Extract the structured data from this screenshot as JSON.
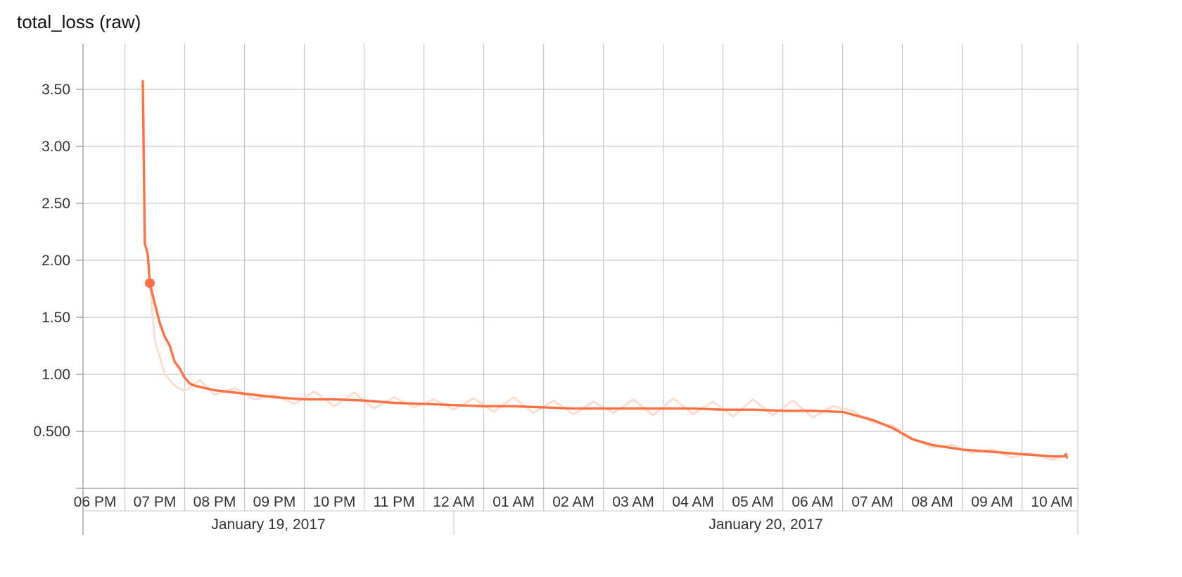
{
  "chart_data": {
    "type": "line",
    "title": "total_loss (raw)",
    "xlabel": "",
    "ylabel": "",
    "grid": true,
    "legend": "none",
    "x_axis": {
      "type": "time",
      "range": [
        "2017-01-19 17:48",
        "2017-01-20 10:26"
      ],
      "tick_labels": [
        "06 PM",
        "07 PM",
        "08 PM",
        "09 PM",
        "10 PM",
        "11 PM",
        "12 AM",
        "01 AM",
        "02 AM",
        "03 AM",
        "04 AM",
        "05 AM",
        "06 AM",
        "07 AM",
        "08 AM",
        "09 AM",
        "10 AM"
      ],
      "date_labels": [
        "January 19, 2017",
        "January 20, 2017"
      ]
    },
    "y_axis": {
      "range": [
        0,
        3.9
      ],
      "tick_values": [
        0.5,
        1.0,
        1.5,
        2.0,
        2.5,
        3.0,
        3.5
      ],
      "tick_labels": [
        "0.500",
        "1.00",
        "1.50",
        "2.00",
        "2.50",
        "3.00",
        "3.50"
      ]
    },
    "series": [
      {
        "role": "smoothed",
        "color": "#ff7043",
        "x": [
          "2017-01-19 18:48",
          "2017-01-19 18:50",
          "2017-01-19 18:53",
          "2017-01-19 18:55",
          "2017-01-19 19:00",
          "2017-01-19 19:05",
          "2017-01-19 19:10",
          "2017-01-19 19:15",
          "2017-01-19 19:20",
          "2017-01-19 19:25",
          "2017-01-19 19:30",
          "2017-01-19 19:35",
          "2017-01-19 19:40",
          "2017-01-19 19:45",
          "2017-01-19 19:50",
          "2017-01-19 20:00",
          "2017-01-19 20:30",
          "2017-01-19 21:00",
          "2017-01-19 21:30",
          "2017-01-19 22:00",
          "2017-01-19 22:30",
          "2017-01-19 23:00",
          "2017-01-19 23:30",
          "2017-01-20 00:00",
          "2017-01-20 00:30",
          "2017-01-20 01:00",
          "2017-01-20 01:30",
          "2017-01-20 02:00",
          "2017-01-20 02:30",
          "2017-01-20 03:00",
          "2017-01-20 03:30",
          "2017-01-20 04:00",
          "2017-01-20 04:30",
          "2017-01-20 05:00",
          "2017-01-20 05:30",
          "2017-01-20 06:00",
          "2017-01-20 06:30",
          "2017-01-20 07:00",
          "2017-01-20 07:20",
          "2017-01-20 07:40",
          "2017-01-20 08:00",
          "2017-01-20 08:30",
          "2017-01-20 09:00",
          "2017-01-20 09:30",
          "2017-01-20 10:00",
          "2017-01-20 10:12",
          "2017-01-20 10:14",
          "2017-01-20 10:15"
        ],
        "y": [
          3.57,
          2.15,
          2.05,
          1.8,
          1.62,
          1.45,
          1.33,
          1.25,
          1.11,
          1.05,
          0.97,
          0.92,
          0.9,
          0.89,
          0.88,
          0.86,
          0.83,
          0.8,
          0.78,
          0.78,
          0.77,
          0.75,
          0.74,
          0.73,
          0.72,
          0.72,
          0.71,
          0.7,
          0.7,
          0.7,
          0.7,
          0.7,
          0.69,
          0.69,
          0.68,
          0.68,
          0.67,
          0.6,
          0.53,
          0.43,
          0.38,
          0.34,
          0.32,
          0.3,
          0.28,
          0.28,
          0.3,
          0.27
        ]
      },
      {
        "role": "raw",
        "color": "#ffdcd0",
        "x": [
          "2017-01-19 18:55",
          "2017-01-19 19:00",
          "2017-01-19 19:05",
          "2017-01-19 19:10",
          "2017-01-19 19:20",
          "2017-01-19 19:30",
          "2017-01-19 19:45",
          "2017-01-19 20:00",
          "2017-01-19 20:20",
          "2017-01-19 20:40",
          "2017-01-19 21:00",
          "2017-01-19 21:20",
          "2017-01-19 21:40",
          "2017-01-19 22:00",
          "2017-01-19 22:20",
          "2017-01-19 22:40",
          "2017-01-19 23:00",
          "2017-01-19 23:20",
          "2017-01-19 23:40",
          "2017-01-20 00:00",
          "2017-01-20 00:20",
          "2017-01-20 00:40",
          "2017-01-20 01:00",
          "2017-01-20 01:20",
          "2017-01-20 01:40",
          "2017-01-20 02:00",
          "2017-01-20 02:20",
          "2017-01-20 02:40",
          "2017-01-20 03:00",
          "2017-01-20 03:20",
          "2017-01-20 03:40",
          "2017-01-20 04:00",
          "2017-01-20 04:20",
          "2017-01-20 04:40",
          "2017-01-20 05:00",
          "2017-01-20 05:20",
          "2017-01-20 05:40",
          "2017-01-20 06:00",
          "2017-01-20 06:20",
          "2017-01-20 06:40",
          "2017-01-20 07:00",
          "2017-01-20 07:20",
          "2017-01-20 07:40",
          "2017-01-20 08:00",
          "2017-01-20 08:20",
          "2017-01-20 08:40",
          "2017-01-20 09:00",
          "2017-01-20 09:20",
          "2017-01-20 09:40",
          "2017-01-20 10:00",
          "2017-01-20 10:15"
        ],
        "y": [
          1.8,
          1.3,
          1.15,
          1.0,
          0.9,
          0.85,
          0.95,
          0.82,
          0.88,
          0.78,
          0.82,
          0.74,
          0.85,
          0.72,
          0.84,
          0.7,
          0.8,
          0.71,
          0.78,
          0.69,
          0.79,
          0.67,
          0.8,
          0.66,
          0.77,
          0.65,
          0.76,
          0.66,
          0.78,
          0.64,
          0.79,
          0.65,
          0.76,
          0.63,
          0.78,
          0.64,
          0.77,
          0.62,
          0.72,
          0.68,
          0.58,
          0.55,
          0.44,
          0.36,
          0.38,
          0.31,
          0.34,
          0.27,
          0.31,
          0.25,
          0.29
        ]
      }
    ],
    "highlight_point": {
      "x": "2017-01-19 18:55",
      "y": 1.8,
      "color": "#ff7043"
    }
  }
}
